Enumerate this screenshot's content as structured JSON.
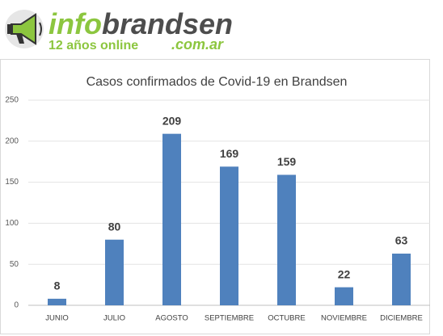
{
  "logo": {
    "name_part1": "info",
    "name_part2": "brandsen",
    "domain": ".com.ar",
    "tagline": "12 años online"
  },
  "chart_data": {
    "type": "bar",
    "title": "Casos confirmados de Covid-19 en Brandsen",
    "categories": [
      "JUNIO",
      "JULIO",
      "AGOSTO",
      "SEPTIEMBRE",
      "OCTUBRE",
      "NOVIEMBRE",
      "DICIEMBRE"
    ],
    "values": [
      8,
      80,
      209,
      169,
      159,
      22,
      63
    ],
    "color": "#4f81bd",
    "ylim": [
      0,
      250
    ],
    "yticks": [
      0,
      50,
      100,
      150,
      200,
      250
    ],
    "grid": true
  }
}
